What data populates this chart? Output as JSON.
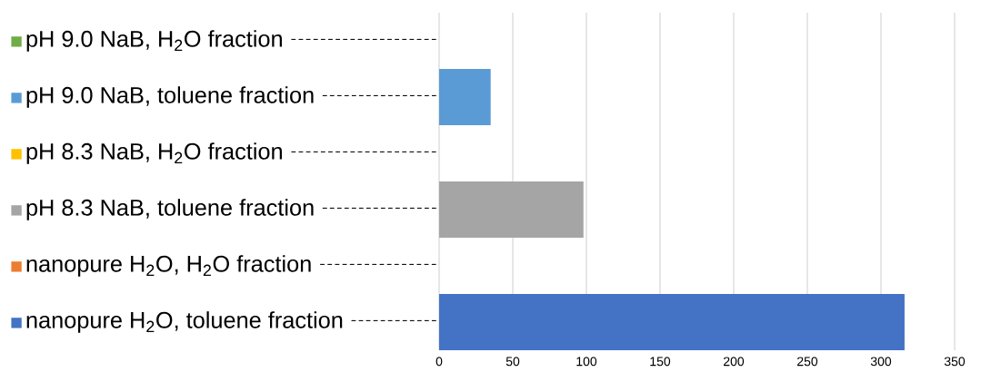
{
  "chart_data": {
    "type": "bar",
    "orientation": "horizontal",
    "categories": [
      "pH 9.0 NaB, H$_{2}$O fraction",
      "pH 9.0 NaB, toluene fraction",
      "pH 8.3 NaB, H$_{2}$O fraction",
      "pH 8.3 NaB, toluene fraction",
      "nanopure H$_{2}$O, H$_{2}$O fraction",
      "nanopure H$_{2}$O, toluene fraction"
    ],
    "values": [
      0,
      35,
      0,
      98,
      0,
      316
    ],
    "colors": [
      "#70ad47",
      "#5b9bd5",
      "#ffc000",
      "#a5a5a5",
      "#ed7d31",
      "#4472c4"
    ],
    "xlim": [
      0,
      350
    ],
    "xticks": [
      0,
      50,
      100,
      150,
      200,
      250,
      300,
      350
    ],
    "grid": "x"
  }
}
